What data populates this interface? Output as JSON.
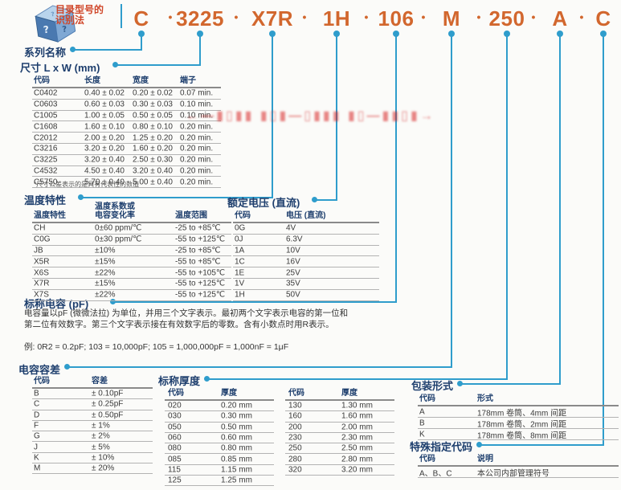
{
  "header": {
    "logo_title": "目录型号的\n识别法",
    "part_segments": [
      "C",
      "3225",
      "X7R",
      "1H",
      "106",
      "M",
      "250",
      "A",
      "C"
    ],
    "separator": "•"
  },
  "colors": {
    "part_number": "#d2672e",
    "logo_title": "#d0472a",
    "connector_blue": "#2f9dcc",
    "section_navy": "#1d3e6d",
    "watermark_red": "#d72323"
  },
  "watermark": {
    "illegible_red_stamp": "←—▮▯▮▮ ▮▯▮—▯▮▮▮ ▮▯—▮▮▯▮→"
  },
  "sections": {
    "series": {
      "title": "系列名称"
    },
    "dimensions": {
      "title": "尺寸 L x W (mm)",
      "headers": [
        "代码",
        "长度",
        "宽度",
        "端子"
      ],
      "rows": [
        [
          "C0402",
          "0.40 ± 0.02",
          "0.20 ± 0.02",
          "0.07 min."
        ],
        [
          "C0603",
          "0.60 ± 0.03",
          "0.30 ± 0.03",
          "0.10 min."
        ],
        [
          "C1005",
          "1.00 ± 0.05",
          "0.50 ± 0.05",
          "0.10 min."
        ],
        [
          "C1608",
          "1.60 ± 0.10",
          "0.80 ± 0.10",
          "0.20 min."
        ],
        [
          "C2012",
          "2.00 ± 0.20",
          "1.25 ± 0.20",
          "0.20 min."
        ],
        [
          "C3216",
          "3.20 ± 0.20",
          "1.60 ± 0.20",
          "0.20 min."
        ],
        [
          "C3225",
          "3.20 ± 0.40",
          "2.50 ± 0.30",
          "0.20 min."
        ],
        [
          "C4532",
          "4.50 ± 0.40",
          "3.20 ± 0.40",
          "0.20 min."
        ],
        [
          "C5750",
          "5.70 ± 0.40",
          "5.00 ± 0.40",
          "0.20 min."
        ]
      ],
      "footnote": "*尺寸公差表示的是具有代表性的数值"
    },
    "temp_char": {
      "title": "温度特性",
      "headers": [
        "温度特性",
        "温度系数或\n电容变化率",
        "温度范围"
      ],
      "rows": [
        [
          "CH",
          "0±60 ppm/℃",
          "-25 to +85℃"
        ],
        [
          "C0G",
          "0±30 ppm/℃",
          "-55 to +125℃"
        ],
        [
          "JB",
          "±10%",
          "-25 to +85℃"
        ],
        [
          "X5R",
          "±15%",
          "-55 to +85℃"
        ],
        [
          "X6S",
          "±22%",
          "-55 to +105℃"
        ],
        [
          "X7R",
          "±15%",
          "-55 to +125℃"
        ],
        [
          "X7S",
          "±22%",
          "-55 to +125℃"
        ]
      ]
    },
    "rated_voltage": {
      "title": "额定电压 (直流)",
      "headers": [
        "代码",
        "电压 (直流)"
      ],
      "rows": [
        [
          "0G",
          "4V"
        ],
        [
          "0J",
          "6.3V"
        ],
        [
          "1A",
          "10V"
        ],
        [
          "1C",
          "16V"
        ],
        [
          "1E",
          "25V"
        ],
        [
          "1V",
          "35V"
        ],
        [
          "1H",
          "50V"
        ]
      ]
    },
    "capacitance": {
      "title": "标称电容 (pF)",
      "paragraph": "电容量以pF (微微法拉) 为单位，并用三个文字表示。最初两个文字表示电容的第一位和\n第二位有效数字。第三个文字表示接在有效数字后的零数。含有小数点时用R表示。",
      "example": "例: 0R2 = 0.2pF; 103 = 10,000pF; 105 = 1,000,000pF = 1,000nF = 1μF"
    },
    "tolerance": {
      "title": "电容容差",
      "headers": [
        "代码",
        "容差"
      ],
      "rows": [
        [
          "B",
          "± 0.10pF"
        ],
        [
          "C",
          "± 0.25pF"
        ],
        [
          "D",
          "± 0.50pF"
        ],
        [
          "F",
          "± 1%"
        ],
        [
          "G",
          "± 2%"
        ],
        [
          "J",
          "± 5%"
        ],
        [
          "K",
          "± 10%"
        ],
        [
          "M",
          "± 20%"
        ]
      ]
    },
    "thickness": {
      "title": "标称厚度",
      "headers": [
        "代码",
        "厚度"
      ],
      "rows_left": [
        [
          "020",
          "0.20 mm"
        ],
        [
          "030",
          "0.30 mm"
        ],
        [
          "050",
          "0.50 mm"
        ],
        [
          "060",
          "0.60 mm"
        ],
        [
          "080",
          "0.80 mm"
        ],
        [
          "085",
          "0.85 mm"
        ],
        [
          "115",
          "1.15 mm"
        ],
        [
          "125",
          "1.25 mm"
        ]
      ],
      "rows_right": [
        [
          "130",
          "1.30 mm"
        ],
        [
          "160",
          "1.60 mm"
        ],
        [
          "200",
          "2.00 mm"
        ],
        [
          "230",
          "2.30 mm"
        ],
        [
          "250",
          "2.50 mm"
        ],
        [
          "280",
          "2.80 mm"
        ],
        [
          "320",
          "3.20 mm"
        ]
      ]
    },
    "packaging": {
      "title": "包装形式",
      "headers": [
        "代码",
        "形式"
      ],
      "rows": [
        [
          "A",
          "178mm 卷筒、4mm 间距"
        ],
        [
          "B",
          "178mm 卷筒、2mm 间距"
        ],
        [
          "K",
          "178mm 卷筒、8mm 间距"
        ]
      ]
    },
    "special": {
      "title": "特殊指定代码",
      "headers": [
        "代码",
        "说明"
      ],
      "rows": [
        [
          "A、B、C",
          "本公司内部管理符号"
        ]
      ]
    }
  }
}
